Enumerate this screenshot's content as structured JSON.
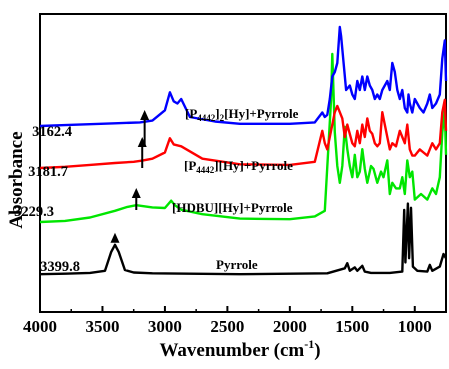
{
  "chart_data": {
    "type": "line",
    "xlabel": "Wavenumber (cm",
    "xlabel_sup": "-1",
    "xlabel_end": ")",
    "ylabel": "Absorbance",
    "xlim": [
      4000,
      750
    ],
    "x_reversed": true,
    "y_ticks_shown": false,
    "x_ticks": [
      4000,
      3500,
      3000,
      2500,
      2000,
      1500,
      1000
    ],
    "x_tick_labels": [
      "4000",
      "3500",
      "3000",
      "2500",
      "2000",
      "1500",
      "1000"
    ],
    "series": [
      {
        "key": "pyrrole",
        "label_parts": [
          {
            "t": "Pyrrole"
          }
        ],
        "color": "#000000",
        "peak_label": "3399.8",
        "peak_x": 3399.8,
        "points": [
          [
            4000,
            0.02
          ],
          [
            3800,
            0.03
          ],
          [
            3600,
            0.05
          ],
          [
            3480,
            0.1
          ],
          [
            3430,
            0.55
          ],
          [
            3400,
            0.72
          ],
          [
            3370,
            0.55
          ],
          [
            3320,
            0.12
          ],
          [
            3250,
            0.06
          ],
          [
            3100,
            0.04
          ],
          [
            2800,
            0.03
          ],
          [
            2400,
            0.02
          ],
          [
            2000,
            0.03
          ],
          [
            1700,
            0.04
          ],
          [
            1560,
            0.16
          ],
          [
            1540,
            0.28
          ],
          [
            1520,
            0.1
          ],
          [
            1480,
            0.18
          ],
          [
            1460,
            0.1
          ],
          [
            1420,
            0.22
          ],
          [
            1400,
            0.08
          ],
          [
            1350,
            0.05
          ],
          [
            1200,
            0.05
          ],
          [
            1100,
            0.08
          ],
          [
            1085,
            1.55
          ],
          [
            1075,
            0.3
          ],
          [
            1055,
            1.7
          ],
          [
            1045,
            0.4
          ],
          [
            1030,
            1.6
          ],
          [
            1015,
            0.2
          ],
          [
            980,
            0.1
          ],
          [
            900,
            0.08
          ],
          [
            880,
            0.24
          ],
          [
            860,
            0.1
          ],
          [
            800,
            0.2
          ],
          [
            770,
            0.5
          ],
          [
            750,
            0.4
          ]
        ]
      },
      {
        "key": "hdbu",
        "label_parts": [
          {
            "t": "[HDBU][Hy]+Pyrrole"
          }
        ],
        "color": "#00e600",
        "peak_label": "3229.3",
        "peak_x": 3229.3,
        "points": [
          [
            4000,
            0.0
          ],
          [
            3800,
            0.02
          ],
          [
            3600,
            0.08
          ],
          [
            3400,
            0.2
          ],
          [
            3300,
            0.27
          ],
          [
            3229,
            0.3
          ],
          [
            3100,
            0.26
          ],
          [
            3000,
            0.25
          ],
          [
            2950,
            0.38
          ],
          [
            2920,
            0.3
          ],
          [
            2870,
            0.22
          ],
          [
            2700,
            0.14
          ],
          [
            2400,
            0.06
          ],
          [
            2000,
            0.05
          ],
          [
            1800,
            0.1
          ],
          [
            1720,
            0.2
          ],
          [
            1690,
            1.4
          ],
          [
            1670,
            2.2
          ],
          [
            1660,
            3.0
          ],
          [
            1640,
            1.6
          ],
          [
            1620,
            1.0
          ],
          [
            1600,
            0.7
          ],
          [
            1580,
            1.0
          ],
          [
            1560,
            1.7
          ],
          [
            1540,
            1.3
          ],
          [
            1520,
            1.0
          ],
          [
            1500,
            0.8
          ],
          [
            1480,
            1.2
          ],
          [
            1460,
            0.8
          ],
          [
            1440,
            0.9
          ],
          [
            1420,
            1.3
          ],
          [
            1400,
            0.95
          ],
          [
            1380,
            0.7
          ],
          [
            1350,
            1.0
          ],
          [
            1330,
            0.95
          ],
          [
            1300,
            0.7
          ],
          [
            1270,
            0.9
          ],
          [
            1250,
            0.8
          ],
          [
            1220,
            1.1
          ],
          [
            1200,
            0.5
          ],
          [
            1180,
            0.7
          ],
          [
            1150,
            0.6
          ],
          [
            1120,
            0.6
          ],
          [
            1100,
            0.8
          ],
          [
            1080,
            0.5
          ],
          [
            1060,
            1.1
          ],
          [
            1040,
            0.8
          ],
          [
            1020,
            0.9
          ],
          [
            1000,
            0.4
          ],
          [
            950,
            0.5
          ],
          [
            900,
            0.4
          ],
          [
            860,
            0.6
          ],
          [
            830,
            0.5
          ],
          [
            800,
            0.8
          ],
          [
            780,
            1.6
          ],
          [
            760,
            2.0
          ],
          [
            750,
            1.2
          ]
        ]
      },
      {
        "key": "p4442",
        "label_parts": [
          {
            "t": "[P"
          },
          {
            "t": "4442",
            "sub": true
          },
          {
            "t": "][Hy]+Pyrrole"
          }
        ],
        "color": "#ff0000",
        "peak_label": "3181.7",
        "peak_x": 3181.7,
        "points": [
          [
            4000,
            0.0
          ],
          [
            3800,
            0.02
          ],
          [
            3600,
            0.05
          ],
          [
            3400,
            0.08
          ],
          [
            3250,
            0.1
          ],
          [
            3180,
            0.12
          ],
          [
            3100,
            0.15
          ],
          [
            3000,
            0.25
          ],
          [
            2960,
            0.48
          ],
          [
            2930,
            0.38
          ],
          [
            2870,
            0.35
          ],
          [
            2700,
            0.15
          ],
          [
            2400,
            0.06
          ],
          [
            2000,
            0.05
          ],
          [
            1800,
            0.1
          ],
          [
            1740,
            0.6
          ],
          [
            1720,
            0.4
          ],
          [
            1700,
            0.3
          ],
          [
            1660,
            0.7
          ],
          [
            1640,
            0.9
          ],
          [
            1620,
            1.0
          ],
          [
            1600,
            0.9
          ],
          [
            1580,
            0.8
          ],
          [
            1560,
            0.5
          ],
          [
            1540,
            0.7
          ],
          [
            1520,
            0.55
          ],
          [
            1500,
            0.4
          ],
          [
            1480,
            0.35
          ],
          [
            1460,
            0.6
          ],
          [
            1440,
            0.4
          ],
          [
            1420,
            0.7
          ],
          [
            1400,
            0.5
          ],
          [
            1380,
            0.8
          ],
          [
            1360,
            0.6
          ],
          [
            1340,
            0.55
          ],
          [
            1320,
            0.4
          ],
          [
            1300,
            0.35
          ],
          [
            1280,
            0.4
          ],
          [
            1260,
            0.9
          ],
          [
            1240,
            0.7
          ],
          [
            1220,
            0.5
          ],
          [
            1200,
            0.3
          ],
          [
            1180,
            0.4
          ],
          [
            1150,
            0.35
          ],
          [
            1120,
            0.6
          ],
          [
            1100,
            0.5
          ],
          [
            1080,
            0.4
          ],
          [
            1060,
            0.7
          ],
          [
            1040,
            0.3
          ],
          [
            1020,
            0.2
          ],
          [
            1000,
            0.2
          ],
          [
            960,
            0.3
          ],
          [
            930,
            0.25
          ],
          [
            900,
            0.2
          ],
          [
            860,
            0.4
          ],
          [
            830,
            0.3
          ],
          [
            800,
            0.4
          ],
          [
            780,
            0.9
          ],
          [
            760,
            1.1
          ],
          [
            750,
            0.6
          ]
        ]
      },
      {
        "key": "p4442_2",
        "label_parts": [
          {
            "t": "[P"
          },
          {
            "t": "4442",
            "sub": true
          },
          {
            "t": "]"
          },
          {
            "t": "2",
            "sub": true
          },
          {
            "t": "[Hy]+Pyrrole"
          }
        ],
        "color": "#0000ff",
        "peak_label": "3162.4",
        "peak_x": 3162.4,
        "points": [
          [
            4000,
            0.0
          ],
          [
            3800,
            0.02
          ],
          [
            3600,
            0.04
          ],
          [
            3400,
            0.06
          ],
          [
            3200,
            0.08
          ],
          [
            3100,
            0.12
          ],
          [
            3000,
            0.35
          ],
          [
            2960,
            0.75
          ],
          [
            2930,
            0.55
          ],
          [
            2900,
            0.5
          ],
          [
            2870,
            0.6
          ],
          [
            2800,
            0.2
          ],
          [
            2600,
            0.1
          ],
          [
            2400,
            0.05
          ],
          [
            2000,
            0.05
          ],
          [
            1800,
            0.08
          ],
          [
            1740,
            0.3
          ],
          [
            1720,
            0.2
          ],
          [
            1700,
            0.25
          ],
          [
            1680,
            0.6
          ],
          [
            1660,
            1.1
          ],
          [
            1640,
            1.2
          ],
          [
            1620,
            1.4
          ],
          [
            1600,
            2.2
          ],
          [
            1590,
            2.0
          ],
          [
            1570,
            1.4
          ],
          [
            1550,
            0.8
          ],
          [
            1520,
            0.9
          ],
          [
            1500,
            0.7
          ],
          [
            1480,
            0.6
          ],
          [
            1460,
            1.0
          ],
          [
            1440,
            0.8
          ],
          [
            1420,
            1.1
          ],
          [
            1400,
            0.8
          ],
          [
            1380,
            1.1
          ],
          [
            1360,
            0.9
          ],
          [
            1340,
            0.8
          ],
          [
            1320,
            0.6
          ],
          [
            1300,
            0.7
          ],
          [
            1280,
            0.6
          ],
          [
            1260,
            0.8
          ],
          [
            1240,
            0.9
          ],
          [
            1220,
            1.0
          ],
          [
            1200,
            0.8
          ],
          [
            1180,
            1.4
          ],
          [
            1160,
            1.2
          ],
          [
            1140,
            0.8
          ],
          [
            1120,
            0.6
          ],
          [
            1100,
            0.8
          ],
          [
            1080,
            0.4
          ],
          [
            1060,
            0.3
          ],
          [
            1050,
            0.7
          ],
          [
            1040,
            0.5
          ],
          [
            1020,
            0.3
          ],
          [
            1000,
            0.6
          ],
          [
            960,
            0.4
          ],
          [
            930,
            0.3
          ],
          [
            900,
            0.5
          ],
          [
            880,
            0.7
          ],
          [
            860,
            0.4
          ],
          [
            830,
            0.5
          ],
          [
            800,
            0.7
          ],
          [
            780,
            1.5
          ],
          [
            760,
            1.9
          ],
          [
            750,
            1.0
          ]
        ]
      }
    ]
  }
}
